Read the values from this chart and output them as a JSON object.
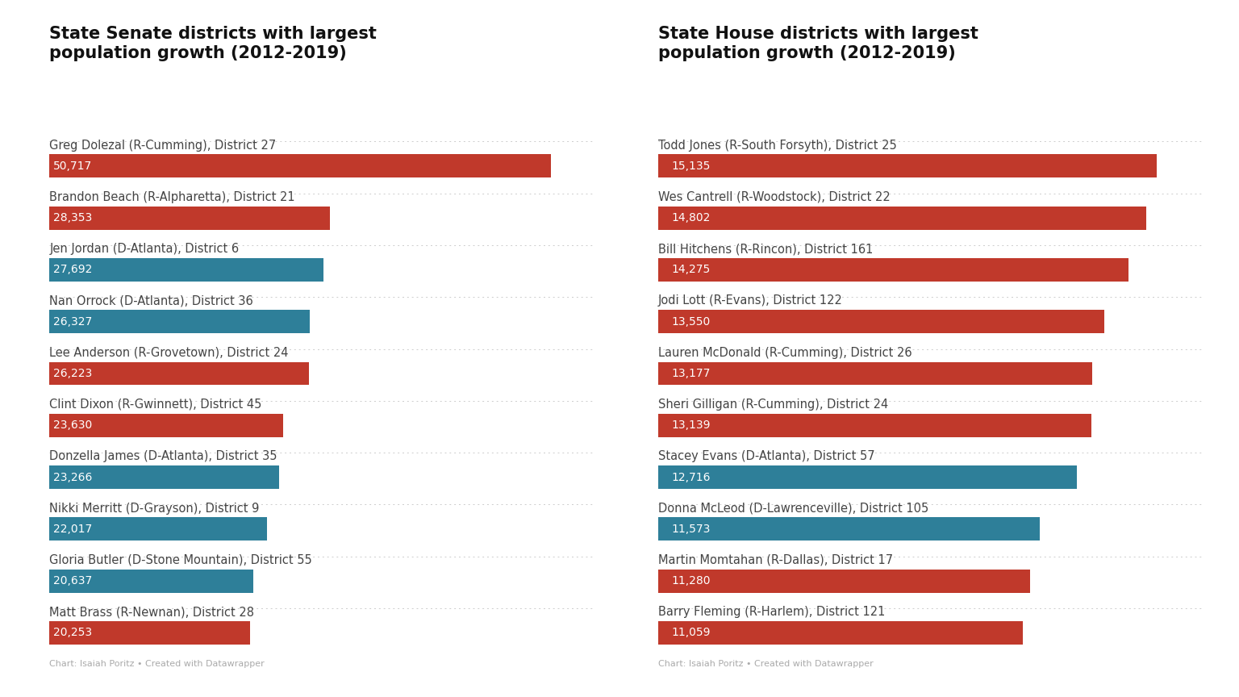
{
  "senate_title": "State Senate districts with largest\npopulation growth (2012-2019)",
  "house_title": "State House districts with largest\npopulation growth (2012-2019)",
  "senate_labels": [
    "Greg Dolezal (R-Cumming), District 27",
    "Brandon Beach (R-Alpharetta), District 21",
    "Jen Jordan (D-Atlanta), District 6",
    "Nan Orrock (D-Atlanta), District 36",
    "Lee Anderson (R-Grovetown), District 24",
    "Clint Dixon (R-Gwinnett), District 45",
    "Donzella James (D-Atlanta), District 35",
    "Nikki Merritt (D-Grayson), District 9",
    "Gloria Butler (D-Stone Mountain), District 55",
    "Matt Brass (R-Newnan), District 28"
  ],
  "senate_values": [
    50717,
    28353,
    27692,
    26327,
    26223,
    23630,
    23266,
    22017,
    20637,
    20253
  ],
  "senate_colors": [
    "#c0392b",
    "#c0392b",
    "#2e7f99",
    "#2e7f99",
    "#c0392b",
    "#c0392b",
    "#2e7f99",
    "#2e7f99",
    "#2e7f99",
    "#c0392b"
  ],
  "house_labels": [
    "Todd Jones (R-South Forsyth), District 25",
    "Wes Cantrell (R-Woodstock), District 22",
    "Bill Hitchens (R-Rincon), District 161",
    "Jodi Lott (R-Evans), District 122",
    "Lauren McDonald (R-Cumming), District 26",
    "Sheri Gilligan (R-Cumming), District 24",
    "Stacey Evans (D-Atlanta), District 57",
    "Donna McLeod (D-Lawrenceville), District 105",
    "Martin Momtahan (R-Dallas), District 17",
    "Barry Fleming (R-Harlem), District 121"
  ],
  "house_values": [
    15135,
    14802,
    14275,
    13550,
    13177,
    13139,
    12716,
    11573,
    11280,
    11059
  ],
  "house_colors": [
    "#c0392b",
    "#c0392b",
    "#c0392b",
    "#c0392b",
    "#c0392b",
    "#c0392b",
    "#2e7f99",
    "#2e7f99",
    "#c0392b",
    "#c0392b"
  ],
  "bar_height": 0.45,
  "label_fontsize": 10.5,
  "value_fontsize": 10,
  "title_fontsize": 15,
  "footnote": "Chart: Isaiah Poritz • Created with Datawrapper",
  "bg_color": "#ffffff",
  "label_color": "#444444",
  "value_text_color": "#ffffff",
  "senate_max": 55000,
  "house_max": 16500
}
